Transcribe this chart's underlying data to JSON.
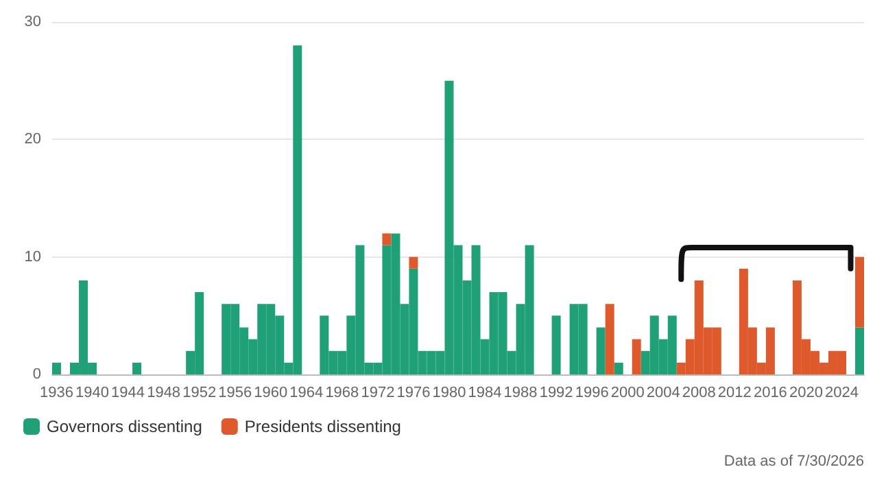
{
  "chart_data": {
    "type": "bar",
    "stacked": true,
    "categories": [
      "1936",
      null,
      null,
      null,
      "1940",
      null,
      null,
      null,
      "1944",
      null,
      null,
      null,
      "1948",
      null,
      null,
      null,
      "1952",
      null,
      null,
      null,
      "1956",
      null,
      null,
      null,
      "1960",
      null,
      null,
      null,
      "1964",
      null,
      null,
      null,
      "1968",
      null,
      null,
      null,
      "1972",
      null,
      null,
      null,
      "1976",
      null,
      null,
      null,
      "1980",
      null,
      null,
      null,
      "1984",
      null,
      null,
      null,
      "1988",
      null,
      null,
      null,
      "1992",
      null,
      null,
      null,
      "1996",
      null,
      null,
      null,
      "2000",
      null,
      null,
      null,
      "2004",
      null,
      null,
      null,
      "2008",
      null,
      null,
      null,
      "2012",
      null,
      null,
      null,
      "2016",
      null,
      null,
      null,
      "2020",
      null,
      null,
      null,
      "2024",
      null,
      null
    ],
    "series": [
      {
        "name": "Governors dissenting",
        "color": "#1fa077",
        "values": [
          1,
          0,
          1,
          8,
          1,
          0,
          0,
          0,
          0,
          1,
          0,
          0,
          0,
          0,
          0,
          2,
          7,
          0,
          0,
          6,
          6,
          4,
          3,
          6,
          6,
          5,
          1,
          28,
          0,
          0,
          5,
          2,
          2,
          5,
          11,
          1,
          1,
          11,
          12,
          6,
          9,
          2,
          2,
          2,
          25,
          11,
          8,
          11,
          3,
          7,
          7,
          2,
          6,
          11,
          0,
          0,
          5,
          0,
          6,
          6,
          0,
          4,
          0,
          1,
          0,
          0,
          2,
          5,
          3,
          5,
          0,
          0,
          0,
          0,
          0,
          0,
          0,
          0,
          0,
          0,
          0,
          0,
          0,
          0,
          0,
          0,
          0,
          0,
          0,
          0,
          4
        ]
      },
      {
        "name": "Presidents dissenting",
        "color": "#de5a2c",
        "values": [
          0,
          0,
          0,
          0,
          0,
          0,
          0,
          0,
          0,
          0,
          0,
          0,
          0,
          0,
          0,
          0,
          0,
          0,
          0,
          0,
          0,
          0,
          0,
          0,
          0,
          0,
          0,
          0,
          0,
          0,
          0,
          0,
          0,
          0,
          0,
          0,
          0,
          1,
          0,
          0,
          1,
          0,
          0,
          0,
          0,
          0,
          0,
          0,
          0,
          0,
          0,
          0,
          0,
          0,
          0,
          0,
          0,
          0,
          0,
          0,
          0,
          0,
          6,
          0,
          0,
          3,
          0,
          0,
          0,
          0,
          1,
          3,
          8,
          4,
          4,
          0,
          0,
          9,
          4,
          1,
          4,
          0,
          0,
          8,
          3,
          2,
          1,
          2,
          2,
          0,
          6
        ]
      }
    ],
    "ylim": [
      0,
      30
    ],
    "yticks": [
      0,
      10,
      20,
      30
    ],
    "grid": "y",
    "legend": "bottom left",
    "annotations": [
      "Data as of 7/30/2026"
    ]
  }
}
